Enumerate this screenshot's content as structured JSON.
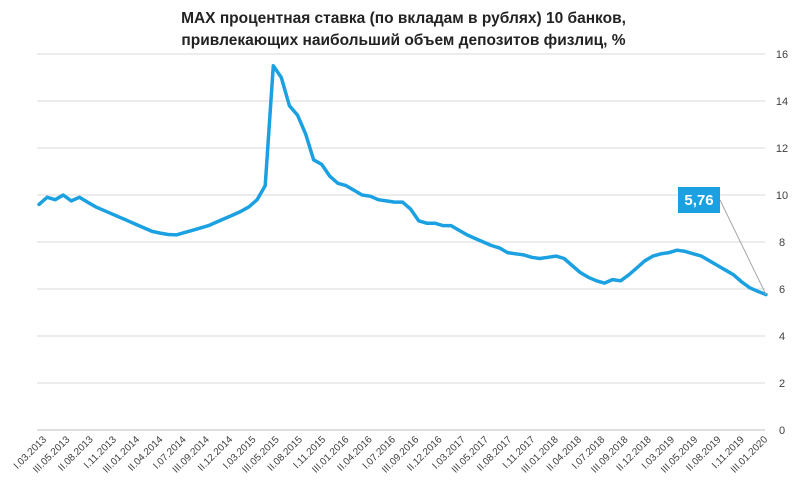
{
  "chart_data": {
    "type": "line",
    "title_lines": [
      "MAX процентная ставка (по вкладам в рублях) 10 банков,",
      "привлекающих  наибольший объем депозитов физлиц, %"
    ],
    "xlabel": "",
    "ylabel": "",
    "ylim": [
      0,
      16
    ],
    "y_ticks": [
      "0",
      "2",
      "4",
      "6",
      "8",
      "10",
      "12",
      "14",
      "16"
    ],
    "y_axis_side": "right",
    "grid": true,
    "legend": "none",
    "x_labels": [
      "I.03.2013",
      "III.05.2013",
      "II.08.2013",
      "I.11.2013",
      "III.01.2014",
      "II.04.2014",
      "I.07.2014",
      "III.09.2014",
      "II.12.2014",
      "I.03.2015",
      "III.05.2015",
      "II.08.2015",
      "I.11.2015",
      "III.01.2016",
      "II.04.2016",
      "I.07.2016",
      "III.09.2016",
      "II.12.2016",
      "I.03.2017",
      "III.05.2017",
      "II.08.2017",
      "I.11.2017",
      "III.01.2018",
      "II.04.2018",
      "I.07.2018",
      "III.09.2018",
      "II.12.2018",
      "I.03.2019",
      "III.05.2019",
      "II.08.2019",
      "I.11.2019",
      "III.01.2020"
    ],
    "series": [
      {
        "color": "#1ba1e2",
        "values": [
          9.6,
          9.9,
          9.8,
          10.0,
          9.75,
          9.9,
          9.7,
          9.5,
          9.35,
          9.2,
          9.05,
          8.9,
          8.75,
          8.6,
          8.45,
          8.38,
          8.32,
          8.3,
          8.4,
          8.5,
          8.6,
          8.7,
          8.85,
          9.0,
          9.15,
          9.3,
          9.5,
          9.8,
          10.4,
          15.5,
          15.0,
          13.8,
          13.4,
          12.6,
          11.5,
          11.3,
          10.8,
          10.5,
          10.4,
          10.2,
          10.0,
          9.95,
          9.8,
          9.75,
          9.7,
          9.7,
          9.4,
          8.9,
          8.8,
          8.8,
          8.7,
          8.7,
          8.5,
          8.3,
          8.15,
          8.0,
          7.85,
          7.75,
          7.55,
          7.5,
          7.45,
          7.35,
          7.3,
          7.35,
          7.4,
          7.3,
          7.0,
          6.7,
          6.5,
          6.35,
          6.25,
          6.4,
          6.35,
          6.6,
          6.9,
          7.2,
          7.4,
          7.5,
          7.55,
          7.65,
          7.6,
          7.5,
          7.4,
          7.2,
          7.0,
          6.8,
          6.6,
          6.3,
          6.05,
          5.9,
          5.76
        ]
      }
    ],
    "callout": {
      "text": "5,76",
      "value": 5.76,
      "color": "#1ba1e2"
    }
  }
}
